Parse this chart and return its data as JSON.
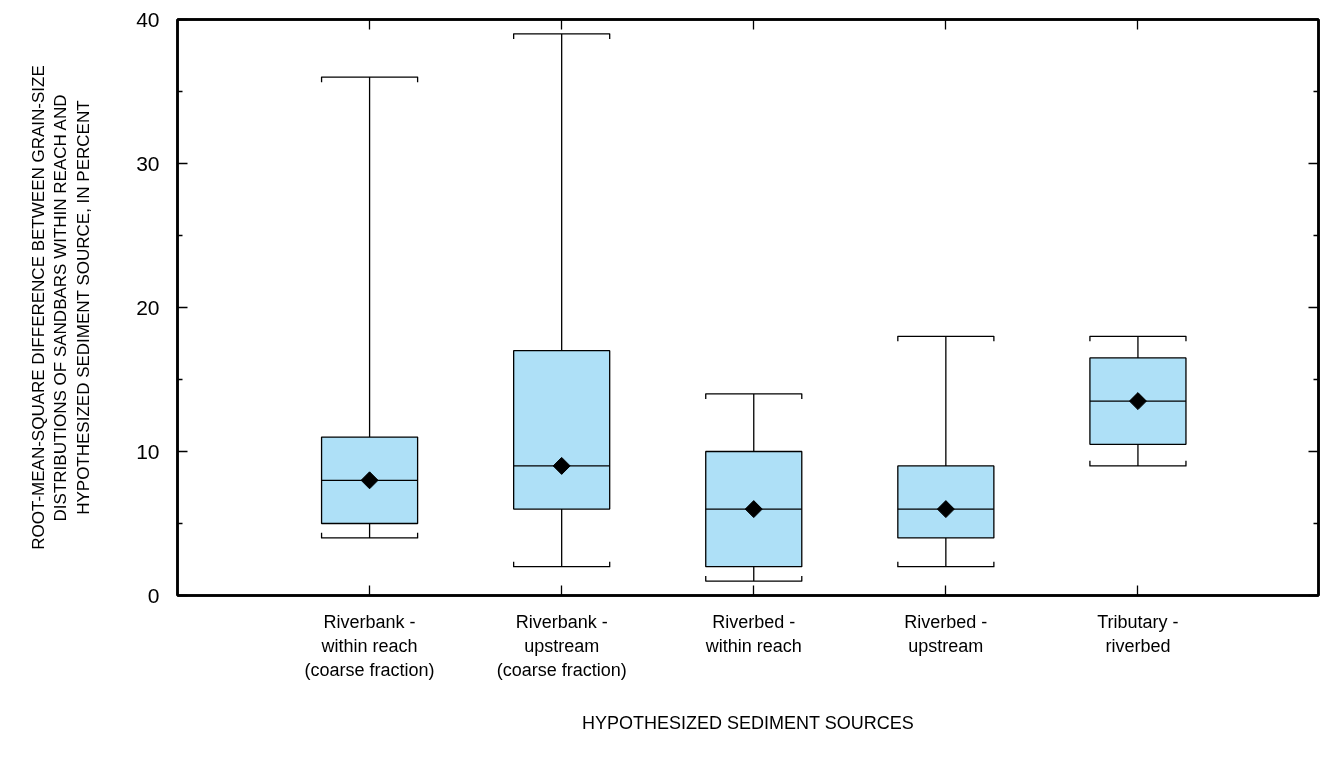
{
  "chart_data": {
    "type": "box",
    "xlabel": "HYPOTHESIZED SEDIMENT SOURCES",
    "ylabel": "ROOT-MEAN-SQUARE DIFFERENCE BETWEEN GRAIN-SIZE\nDISTRIBUTIONS OF SANDBARS WITHIN REACH AND\nHYPOTHESIZED SEDIMENT SOURCE, IN PERCENT",
    "categories": [
      "Riverbank -\nwithin reach\n(coarse fraction)",
      "Riverbank -\nupstream\n(coarse fraction)",
      "Riverbed -\nwithin reach",
      "Riverbed -\nupstream",
      "Tributary -\nriverbed"
    ],
    "color": "#aee0f7",
    "marker": "diamond",
    "grid": false,
    "boxes": [
      {
        "low": 4,
        "q1": 5,
        "median": 8,
        "q3": 11,
        "high": 36,
        "mean": 8
      },
      {
        "low": 2,
        "q1": 6,
        "median": 9,
        "q3": 17,
        "high": 39,
        "mean": 9
      },
      {
        "low": 1,
        "q1": 2,
        "median": 6,
        "q3": 10,
        "high": 14,
        "mean": 6
      },
      {
        "low": 2,
        "q1": 4,
        "median": 6,
        "q3": 9,
        "high": 18,
        "mean": 6
      },
      {
        "low": 9,
        "q1": 10.5,
        "median": 13.5,
        "q3": 16.5,
        "high": 18,
        "mean": 13.5
      }
    ],
    "ylim": [
      0,
      40
    ],
    "yticks": [
      0,
      10,
      20,
      30,
      40,
      {
        "value": 5,
        "label": null
      },
      {
        "value": 15,
        "label": null
      },
      {
        "value": 25,
        "label": null
      },
      {
        "value": 35,
        "label": null
      }
    ]
  }
}
